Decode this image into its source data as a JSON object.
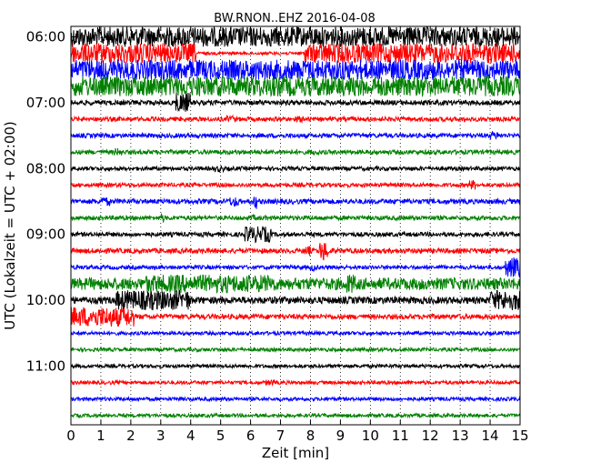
{
  "chart_data": {
    "type": "line",
    "title": "BW.RNON..EHZ 2016-04-08",
    "xlabel": "Zeit  [min]",
    "ylabel": "UTC (Lokalzeit = UTC + 02:00)",
    "xlim": [
      0,
      15
    ],
    "x_ticks": [
      "0",
      "1",
      "2",
      "3",
      "4",
      "5",
      "6",
      "7",
      "8",
      "9",
      "10",
      "11",
      "12",
      "13",
      "14",
      "15"
    ],
    "y_tick_labels": [
      "06:00",
      "07:00",
      "08:00",
      "09:00",
      "10:00",
      "11:00"
    ],
    "grid": "vertical dotted at each minute",
    "colors": [
      "#000000",
      "#ff0000",
      "#0000ff",
      "#008000"
    ],
    "series": [
      {
        "start": "06:00",
        "color": "#000000",
        "amp": 1.0,
        "bursts": []
      },
      {
        "start": "06:15",
        "color": "#ff0000",
        "amp": 1.0,
        "bursts": [],
        "quiet": [
          4.2,
          7.8
        ]
      },
      {
        "start": "06:30",
        "color": "#0000ff",
        "amp": 1.0,
        "bursts": []
      },
      {
        "start": "06:45",
        "color": "#008000",
        "amp": 1.0,
        "bursts": []
      },
      {
        "start": "07:00",
        "color": "#000000",
        "amp": 0.25,
        "bursts": [
          [
            3.5,
            4.0,
            1.0
          ]
        ]
      },
      {
        "start": "07:15",
        "color": "#ff0000",
        "amp": 0.22,
        "bursts": [
          [
            5.2,
            5.5,
            0.35
          ],
          [
            7.5,
            7.9,
            0.3
          ]
        ]
      },
      {
        "start": "07:30",
        "color": "#0000ff",
        "amp": 0.22,
        "bursts": [
          [
            14.0,
            14.3,
            0.4
          ]
        ]
      },
      {
        "start": "07:45",
        "color": "#008000",
        "amp": 0.22,
        "bursts": [
          [
            1.4,
            1.7,
            0.4
          ],
          [
            8.0,
            8.3,
            0.3
          ]
        ]
      },
      {
        "start": "08:00",
        "color": "#000000",
        "amp": 0.2,
        "bursts": [
          [
            4.8,
            5.1,
            0.35
          ]
        ]
      },
      {
        "start": "08:15",
        "color": "#ff0000",
        "amp": 0.2,
        "bursts": [
          [
            13.3,
            13.5,
            0.5
          ]
        ]
      },
      {
        "start": "08:30",
        "color": "#0000ff",
        "amp": 0.25,
        "bursts": [
          [
            1.0,
            1.3,
            0.45
          ],
          [
            5.3,
            5.6,
            0.5
          ],
          [
            6.1,
            6.2,
            0.8
          ]
        ]
      },
      {
        "start": "08:45",
        "color": "#008000",
        "amp": 0.22,
        "bursts": [
          [
            3.0,
            3.1,
            0.5
          ],
          [
            6.0,
            6.2,
            0.3
          ]
        ]
      },
      {
        "start": "09:00",
        "color": "#000000",
        "amp": 0.22,
        "bursts": [
          [
            5.8,
            6.7,
            0.8
          ]
        ]
      },
      {
        "start": "09:15",
        "color": "#ff0000",
        "amp": 0.25,
        "bursts": [
          [
            7.8,
            8.0,
            0.5
          ],
          [
            8.3,
            8.6,
            1.0
          ]
        ]
      },
      {
        "start": "09:30",
        "color": "#0000ff",
        "amp": 0.2,
        "bursts": [
          [
            8.0,
            8.2,
            0.4
          ],
          [
            14.5,
            15.0,
            1.0
          ]
        ]
      },
      {
        "start": "09:45",
        "color": "#008000",
        "amp": 0.6,
        "bursts": [
          [
            2.5,
            6.8,
            0.9
          ],
          [
            9.2,
            9.5,
            1.0
          ]
        ]
      },
      {
        "start": "10:00",
        "color": "#000000",
        "amp": 0.35,
        "bursts": [
          [
            1.5,
            4.0,
            1.0
          ],
          [
            14.0,
            15.0,
            1.0
          ]
        ]
      },
      {
        "start": "10:15",
        "color": "#ff0000",
        "amp": 0.25,
        "bursts": [
          [
            0.0,
            2.1,
            1.0
          ]
        ]
      },
      {
        "start": "10:30",
        "color": "#0000ff",
        "amp": 0.18,
        "bursts": []
      },
      {
        "start": "10:45",
        "color": "#008000",
        "amp": 0.18,
        "bursts": []
      },
      {
        "start": "11:00",
        "color": "#000000",
        "amp": 0.18,
        "bursts": []
      },
      {
        "start": "11:15",
        "color": "#ff0000",
        "amp": 0.18,
        "bursts": [
          [
            6.5,
            6.8,
            0.3
          ]
        ]
      },
      {
        "start": "11:30",
        "color": "#0000ff",
        "amp": 0.18,
        "bursts": []
      },
      {
        "start": "11:45",
        "color": "#008000",
        "amp": 0.18,
        "bursts": []
      }
    ]
  }
}
